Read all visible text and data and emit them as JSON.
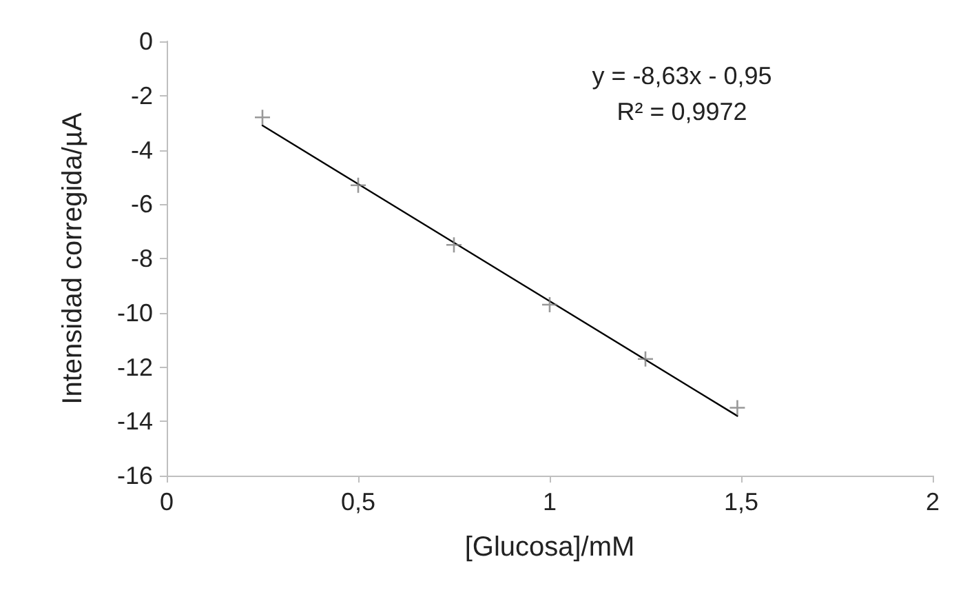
{
  "chart_data": {
    "type": "scatter",
    "xlabel": "[Glucosa]/mM",
    "ylabel": "Intensidad corregida/µA",
    "x": [
      0.25,
      0.5,
      0.75,
      1.0,
      1.25,
      1.49
    ],
    "series": [
      {
        "color": "#7f7f7f",
        "marker": "cross",
        "values": [
          -2.8,
          -5.3,
          -7.5,
          -9.7,
          -11.7,
          -13.5
        ]
      },
      {
        "type": "line",
        "color": "#000000",
        "marker": "none",
        "line_style": "solid",
        "x": [
          0.25,
          1.49
        ],
        "values": [
          -3.1,
          -13.8
        ]
      }
    ],
    "xlim": [
      0,
      2
    ],
    "xticks": [
      0,
      {
        "value": 0.5,
        "label": "0,5"
      },
      1,
      {
        "value": 1.5,
        "label": "1,5"
      },
      2
    ],
    "ylim": [
      -16,
      0
    ],
    "yticks": [
      -16,
      -14,
      -12,
      -10,
      -8,
      -6,
      -4,
      -2,
      0
    ],
    "annotations": [
      "y = -8,63x - 0,95",
      "R² = 0,9972"
    ],
    "grid": false
  }
}
